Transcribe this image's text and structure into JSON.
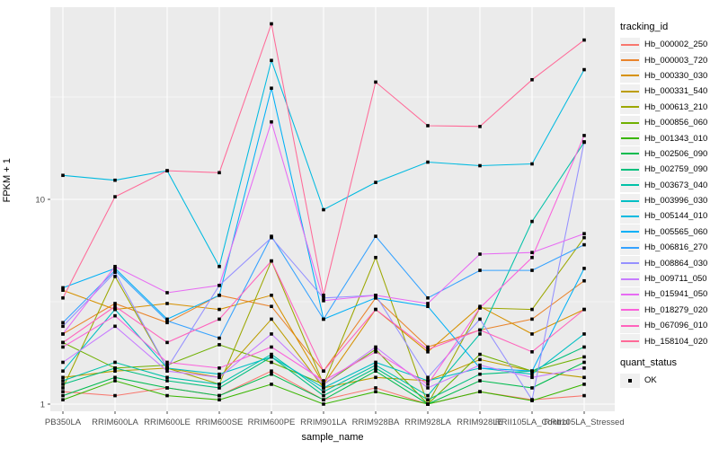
{
  "chart_data": {
    "type": "line",
    "title": "",
    "xlabel": "sample_name",
    "ylabel": "FPKM + 1",
    "x_axis": {
      "categories": [
        "PB350LA",
        "RRIM600LA",
        "RRIM600LE",
        "RRIM600SE",
        "RRIM600PE",
        "RRIM901LA",
        "RRIM928BA",
        "RRIM928LA",
        "RRIM928LE",
        "RRII105LA_Control",
        "RRII105LA_Stressed"
      ]
    },
    "y_axis": {
      "scale": "log10",
      "tick_values": [
        1,
        10
      ],
      "tick_labels": [
        "1",
        "10"
      ],
      "minor_gridlines": [
        3.1623,
        31.623
      ],
      "range": [
        0.95,
        90
      ]
    },
    "grid": "on",
    "panel_background": "#EBEBEB",
    "gridline_color": "#FFFFFF",
    "point_marker": {
      "shape": "filled-square",
      "color": "#000000"
    },
    "legend_position": "right",
    "legends": {
      "color": {
        "title": "tracking_id"
      },
      "shape": {
        "title": "quant_status",
        "items": [
          {
            "label": "OK"
          }
        ]
      }
    },
    "series": [
      {
        "name": "Hb_000002_250",
        "color": "#F8766D",
        "values": [
          1.15,
          1.1,
          1.2,
          1.1,
          1.45,
          1.05,
          1.2,
          1.0,
          1.15,
          1.05,
          1.1
        ]
      },
      {
        "name": "Hb_000003_720",
        "color": "#E9842C",
        "values": [
          2.2,
          3.1,
          2.5,
          3.4,
          3.0,
          1.45,
          3.3,
          1.9,
          2.3,
          2.6,
          4.0
        ]
      },
      {
        "name": "Hb_000330_030",
        "color": "#D69100",
        "values": [
          3.6,
          2.9,
          3.1,
          2.9,
          3.4,
          1.25,
          2.9,
          1.8,
          3.0,
          2.2,
          2.9
        ]
      },
      {
        "name": "Hb_000331_540",
        "color": "#BC9D00",
        "values": [
          1.35,
          1.45,
          1.5,
          1.35,
          2.6,
          1.2,
          1.35,
          1.3,
          1.65,
          1.45,
          1.35
        ]
      },
      {
        "name": "Hb_000613_210",
        "color": "#9CA700",
        "values": [
          1.2,
          4.2,
          1.5,
          1.25,
          5.0,
          1.25,
          5.2,
          1.0,
          2.95,
          2.9,
          6.5
        ]
      },
      {
        "name": "Hb_000856_060",
        "color": "#6FB000",
        "values": [
          2.0,
          1.5,
          1.55,
          1.95,
          1.6,
          1.25,
          1.85,
          1.0,
          1.75,
          1.45,
          1.7
        ]
      },
      {
        "name": "Hb_001343_010",
        "color": "#39B600",
        "values": [
          1.05,
          1.3,
          1.1,
          1.05,
          1.25,
          1.0,
          1.15,
          1.0,
          1.15,
          1.04,
          1.25
        ]
      },
      {
        "name": "Hb_002506_090",
        "color": "#00BB4E",
        "values": [
          1.1,
          1.35,
          1.2,
          1.1,
          1.4,
          1.05,
          1.45,
          1.0,
          1.3,
          1.2,
          1.6
        ]
      },
      {
        "name": "Hb_002759_090",
        "color": "#00BF7D",
        "values": [
          1.25,
          1.5,
          1.3,
          1.2,
          1.7,
          1.1,
          1.5,
          1.05,
          1.4,
          1.45,
          1.9
        ]
      },
      {
        "name": "Hb_003673_040",
        "color": "#00C1A7",
        "values": [
          1.3,
          1.6,
          1.35,
          1.25,
          1.75,
          1.15,
          1.55,
          1.1,
          2.2,
          7.8,
          19.0
        ]
      },
      {
        "name": "Hb_003996_030",
        "color": "#00BFC4",
        "values": [
          1.45,
          2.9,
          1.5,
          1.4,
          1.7,
          1.2,
          1.6,
          1.3,
          1.5,
          1.4,
          2.2
        ]
      },
      {
        "name": "Hb_005144_010",
        "color": "#00BAE0",
        "values": [
          13.1,
          12.4,
          13.8,
          4.7,
          47.7,
          8.9,
          12.1,
          15.2,
          14.6,
          14.9,
          43.0
        ]
      },
      {
        "name": "Hb_005565_060",
        "color": "#00B0F6",
        "values": [
          3.7,
          4.6,
          2.6,
          3.4,
          34.9,
          2.6,
          3.3,
          3.0,
          1.5,
          1.45,
          4.6
        ]
      },
      {
        "name": "Hb_006816_270",
        "color": "#35A2FF",
        "values": [
          2.5,
          4.5,
          2.55,
          2.1,
          6.6,
          2.6,
          6.6,
          3.3,
          4.5,
          4.5,
          6.0
        ]
      },
      {
        "name": "Hb_008864_030",
        "color": "#9590FF",
        "values": [
          2.4,
          4.4,
          1.5,
          3.8,
          6.5,
          3.3,
          3.4,
          1.35,
          2.6,
          1.05,
          19.1
        ]
      },
      {
        "name": "Hb_009711_050",
        "color": "#C77CFF",
        "values": [
          1.6,
          2.4,
          1.45,
          1.35,
          2.2,
          1.25,
          1.9,
          1.2,
          1.55,
          1.35,
          1.5
        ]
      },
      {
        "name": "Hb_015941_050",
        "color": "#E76BF3",
        "values": [
          2.2,
          4.7,
          3.5,
          3.8,
          23.9,
          3.2,
          3.4,
          3.1,
          5.4,
          5.5,
          6.8
        ]
      },
      {
        "name": "Hb_018279_020",
        "color": "#FA62DB",
        "values": [
          1.9,
          2.7,
          1.6,
          1.5,
          1.9,
          1.3,
          1.8,
          1.25,
          2.95,
          5.2,
          20.5
        ]
      },
      {
        "name": "Hb_067096_010",
        "color": "#FF62BC",
        "values": [
          2.0,
          3.0,
          2.0,
          2.6,
          5.0,
          1.45,
          2.9,
          1.85,
          2.3,
          1.8,
          2.9
        ]
      },
      {
        "name": "Hb_158104_020",
        "color": "#FF6A98",
        "values": [
          3.3,
          10.3,
          13.8,
          13.5,
          72.0,
          3.4,
          37.4,
          22.9,
          22.7,
          38.4,
          60.0
        ]
      }
    ],
    "tick_color": "#4D4D4D",
    "tick_label_color": "#4D4D4D"
  }
}
